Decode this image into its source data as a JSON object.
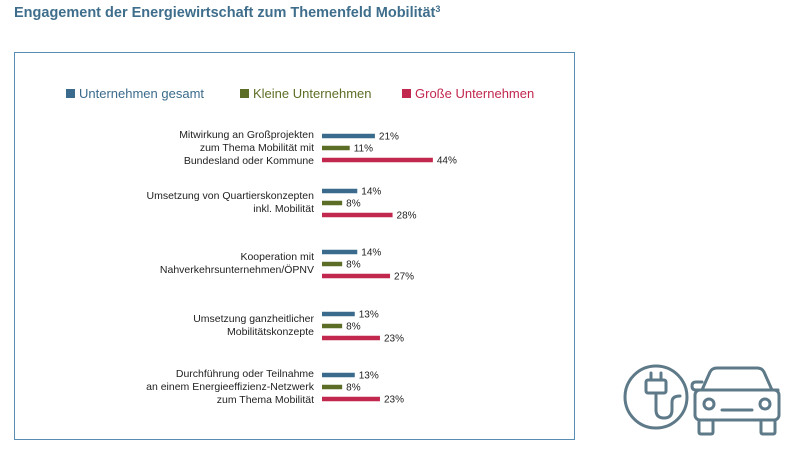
{
  "page": {
    "title": "Engagement der Energiewirtschaft zum Themenfeld Mobilität",
    "title_footnote": "3"
  },
  "colors": {
    "gesamt": "#3b6b8c",
    "klein": "#5c6e26",
    "gross": "#c2274d",
    "frame": "#5a8db2",
    "icon": "#5e7a89"
  },
  "icon": {
    "name": "ev-charging-car-icon"
  },
  "chart_data": {
    "type": "bar",
    "orientation": "horizontal",
    "title": "",
    "xlabel": "",
    "ylabel": "",
    "xlim": [
      0,
      50
    ],
    "grid": false,
    "legend_position": "top",
    "unit": "%",
    "categories": [
      [
        "Mitwirkung an Großprojekten",
        "zum Thema Mobilität mit",
        "Bundesland oder Kommune"
      ],
      [
        "Umsetzung von Quartierskonzepten",
        "inkl. Mobilität"
      ],
      [
        "Kooperation mit",
        "Nahverkehrsunternehmen/ÖPNV"
      ],
      [
        "Umsetzung ganzheitlicher",
        "Mobilitätskonzepte"
      ],
      [
        "Durchführung oder Teilnahme",
        "an einem Energieeffizienz-Netzwerk",
        "zum Thema Mobilität"
      ]
    ],
    "series": [
      {
        "name": "Unternehmen gesamt",
        "color": "#3b6b8c",
        "values": [
          21,
          14,
          14,
          13,
          13
        ]
      },
      {
        "name": "Kleine Unternehmen",
        "color": "#5c6e26",
        "values": [
          11,
          8,
          8,
          8,
          8
        ]
      },
      {
        "name": "Große Unternehmen",
        "color": "#c2274d",
        "values": [
          44,
          28,
          27,
          23,
          23
        ]
      }
    ]
  }
}
